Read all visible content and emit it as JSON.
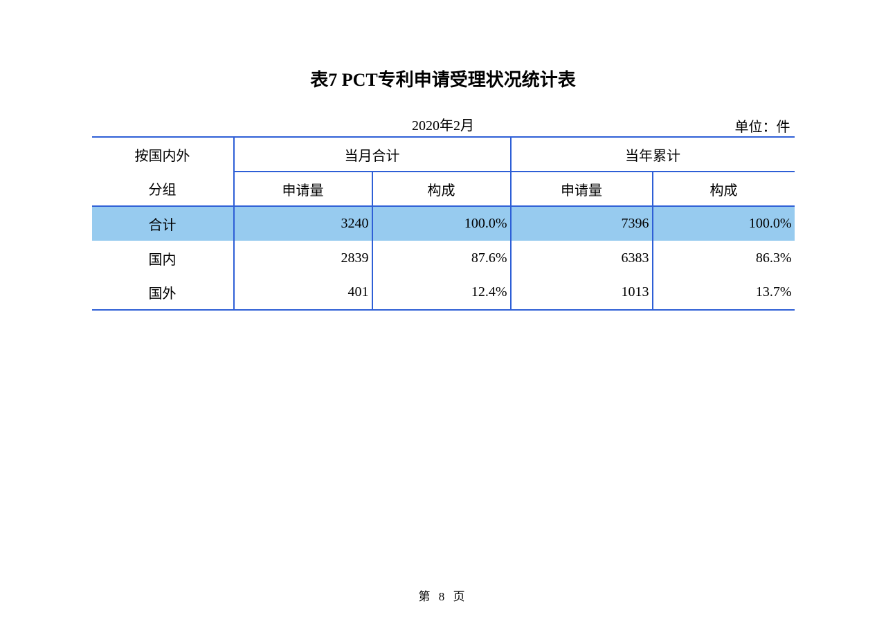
{
  "title": "表7  PCT专利申请受理状况统计表",
  "meta": {
    "date": "2020年2月",
    "unit": "单位：件"
  },
  "table": {
    "header_top": {
      "col1": "按国内外",
      "grp_month": "当月合计",
      "grp_year": "当年累计"
    },
    "header_sub": {
      "col1": "分组",
      "app": "申请量",
      "comp": "构成"
    },
    "rows": [
      {
        "label": "合计",
        "m_app": "3240",
        "m_comp": "100.0%",
        "y_app": "7396",
        "y_comp": "100.0%",
        "highlight": true
      },
      {
        "label": "国内",
        "m_app": "2839",
        "m_comp": "87.6%",
        "y_app": "6383",
        "y_comp": "86.3%",
        "highlight": false
      },
      {
        "label": "国外",
        "m_app": "401",
        "m_comp": "12.4%",
        "y_app": "1013",
        "y_comp": "13.7%",
        "highlight": false
      }
    ],
    "colors": {
      "border": "#2e5fd6",
      "highlight_bg": "#97cbef",
      "bg": "#ffffff",
      "text": "#000000"
    },
    "font_size_body": 20,
    "font_size_title": 26
  },
  "footer": "第 8 页"
}
